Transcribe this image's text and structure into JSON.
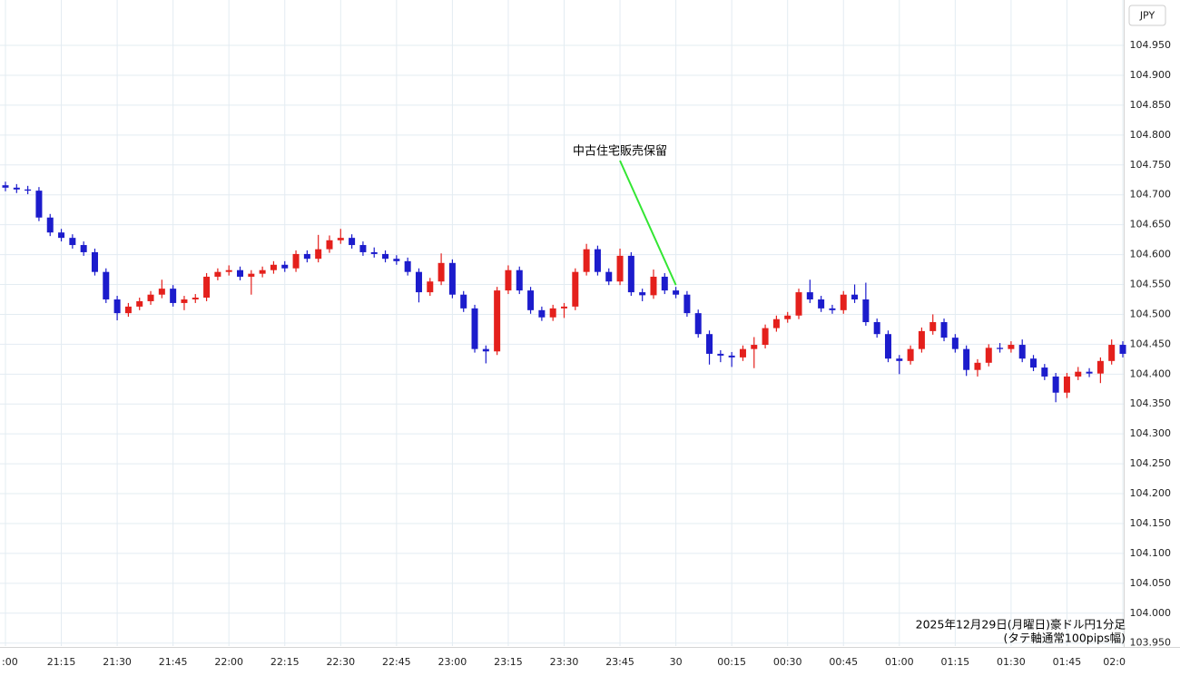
{
  "chart_data": {
    "type": "candlestick",
    "currency": "JPY",
    "caption": [
      "2025年12月29日(月曜日)豪ドル円1分足",
      "(タテ軸通常100pips幅)"
    ],
    "annotation": "中古住宅販売保留",
    "up_color": "#e4201c",
    "down_color": "#1c1ccc",
    "annotation_color": "#33e633",
    "grid": true,
    "ylim": [
      103.945,
      105.026
    ],
    "yticks": [
      {
        "value": 103.95,
        "label": "103.950"
      },
      {
        "value": 104.0,
        "label": "104.000"
      },
      {
        "value": 104.05,
        "label": "104.050"
      },
      {
        "value": 104.1,
        "label": "104.100"
      },
      {
        "value": 104.15,
        "label": "104.150"
      },
      {
        "value": 104.2,
        "label": "104.200"
      },
      {
        "value": 104.25,
        "label": "104.250"
      },
      {
        "value": 104.3,
        "label": "104.300"
      },
      {
        "value": 104.35,
        "label": "104.350"
      },
      {
        "value": 104.4,
        "label": "104.400"
      },
      {
        "value": 104.45,
        "label": "104.450"
      },
      {
        "value": 104.5,
        "label": "104.500"
      },
      {
        "value": 104.55,
        "label": "104.550"
      },
      {
        "value": 104.6,
        "label": "104.600"
      },
      {
        "value": 104.65,
        "label": "104.650"
      },
      {
        "value": 104.7,
        "label": "104.700"
      },
      {
        "value": 104.75,
        "label": "104.750"
      },
      {
        "value": 104.8,
        "label": "104.800"
      },
      {
        "value": 104.85,
        "label": "104.850"
      },
      {
        "value": 104.9,
        "label": "104.900"
      },
      {
        "value": 104.95,
        "label": "104.950"
      }
    ],
    "categories": [
      ":00",
      null,
      null,
      null,
      null,
      "21:15",
      null,
      null,
      null,
      null,
      "21:30",
      null,
      null,
      null,
      null,
      "21:45",
      null,
      null,
      null,
      null,
      "22:00",
      null,
      null,
      null,
      null,
      "22:15",
      null,
      null,
      null,
      null,
      "22:30",
      null,
      null,
      null,
      null,
      "22:45",
      null,
      null,
      null,
      null,
      "23:00",
      null,
      null,
      null,
      null,
      "23:15",
      null,
      null,
      null,
      null,
      "23:30",
      null,
      null,
      null,
      null,
      "23:45",
      null,
      null,
      null,
      null,
      "30",
      null,
      null,
      null,
      null,
      "00:15",
      null,
      null,
      null,
      null,
      "00:30",
      null,
      null,
      null,
      null,
      "00:45",
      null,
      null,
      null,
      null,
      "01:00",
      null,
      null,
      null,
      null,
      "01:15",
      null,
      null,
      null,
      null,
      "01:30",
      null,
      null,
      null,
      null,
      "01:45",
      null,
      null,
      null,
      null,
      "02:0"
    ],
    "open": [
      104.716,
      104.712,
      104.709,
      104.707,
      104.662,
      104.637,
      104.628,
      104.616,
      104.604,
      104.571,
      104.525,
      104.502,
      104.513,
      104.522,
      104.533,
      104.543,
      104.519,
      104.525,
      104.528,
      104.563,
      104.571,
      104.574,
      104.563,
      104.568,
      104.574,
      104.583,
      104.577,
      104.601,
      104.593,
      104.609,
      104.624,
      104.628,
      104.616,
      104.604,
      104.601,
      104.593,
      104.589,
      104.571,
      104.537,
      104.555,
      104.586,
      104.533,
      104.51,
      104.442,
      104.438,
      104.54,
      104.574,
      104.54,
      104.507,
      104.495,
      104.51,
      104.513,
      104.571,
      104.609,
      104.571,
      104.555,
      104.598,
      104.537,
      104.532,
      104.563,
      104.54,
      104.533,
      104.502,
      104.467,
      104.434,
      104.431,
      104.428,
      104.442,
      104.449,
      104.477,
      104.492,
      104.498,
      104.537,
      104.525,
      104.51,
      104.507,
      104.533,
      104.525,
      104.487,
      104.467,
      104.426,
      104.422,
      104.442,
      104.472,
      104.487,
      104.461,
      104.442,
      104.407,
      104.419,
      104.444,
      104.442,
      104.449,
      104.426,
      104.411,
      104.396,
      104.369,
      104.396,
      104.404,
      104.401,
      104.422,
      104.449
    ],
    "high": [
      104.722,
      104.718,
      104.715,
      104.713,
      104.668,
      104.643,
      104.634,
      104.622,
      104.61,
      104.577,
      104.531,
      104.519,
      104.528,
      104.539,
      104.558,
      104.549,
      104.531,
      104.534,
      104.569,
      104.577,
      104.582,
      104.58,
      104.574,
      104.58,
      104.589,
      104.589,
      104.607,
      104.607,
      104.633,
      104.632,
      104.643,
      104.634,
      104.622,
      104.612,
      104.607,
      104.599,
      104.595,
      104.577,
      104.561,
      104.602,
      104.592,
      104.539,
      104.516,
      104.448,
      104.546,
      104.582,
      104.58,
      104.546,
      104.513,
      104.516,
      104.519,
      104.577,
      104.618,
      104.615,
      104.577,
      104.61,
      104.604,
      104.543,
      104.575,
      104.569,
      104.546,
      104.539,
      104.508,
      104.473,
      104.44,
      104.437,
      104.448,
      104.462,
      104.483,
      104.498,
      104.504,
      104.543,
      104.558,
      104.531,
      104.516,
      104.539,
      104.55,
      104.553,
      104.493,
      104.473,
      104.432,
      104.448,
      104.478,
      104.5,
      104.493,
      104.467,
      104.448,
      104.425,
      104.45,
      104.452,
      104.455,
      104.458,
      104.432,
      104.417,
      104.402,
      104.402,
      104.412,
      104.41,
      104.428,
      104.458,
      104.455
    ],
    "low": [
      104.706,
      104.703,
      104.701,
      104.656,
      104.631,
      104.622,
      104.61,
      104.598,
      104.565,
      104.519,
      104.49,
      104.496,
      104.507,
      104.516,
      104.527,
      104.513,
      104.507,
      104.519,
      104.522,
      104.557,
      104.565,
      104.557,
      104.533,
      104.562,
      104.568,
      104.571,
      104.571,
      104.587,
      104.587,
      104.603,
      104.618,
      104.61,
      104.598,
      104.595,
      104.587,
      104.583,
      104.565,
      104.52,
      104.531,
      104.549,
      104.527,
      104.504,
      104.436,
      104.418,
      104.432,
      104.534,
      104.534,
      104.501,
      104.489,
      104.489,
      104.494,
      104.507,
      104.565,
      104.565,
      104.549,
      104.549,
      104.531,
      104.522,
      104.526,
      104.534,
      104.527,
      104.496,
      104.461,
      104.416,
      104.42,
      104.412,
      104.422,
      104.41,
      104.443,
      104.471,
      104.486,
      104.492,
      104.519,
      104.504,
      104.501,
      104.501,
      104.519,
      104.481,
      104.461,
      104.42,
      104.4,
      104.416,
      104.436,
      104.466,
      104.455,
      104.436,
      104.397,
      104.396,
      104.413,
      104.436,
      104.436,
      104.42,
      104.405,
      104.39,
      104.353,
      104.36,
      104.39,
      104.395,
      104.385,
      104.416,
      104.428
    ],
    "close": [
      104.712,
      104.709,
      104.707,
      104.662,
      104.637,
      104.628,
      104.616,
      104.604,
      104.571,
      104.525,
      104.502,
      104.513,
      104.522,
      104.533,
      104.543,
      104.519,
      104.525,
      104.528,
      104.563,
      104.571,
      104.574,
      104.563,
      104.568,
      104.574,
      104.583,
      104.577,
      104.601,
      104.593,
      104.609,
      104.624,
      104.628,
      104.616,
      104.604,
      104.601,
      104.593,
      104.589,
      104.571,
      104.537,
      104.555,
      104.586,
      104.533,
      104.51,
      104.442,
      104.438,
      104.54,
      104.574,
      104.54,
      104.507,
      104.495,
      104.51,
      104.513,
      104.571,
      104.609,
      104.571,
      104.555,
      104.598,
      104.537,
      104.532,
      104.563,
      104.54,
      104.533,
      104.502,
      104.467,
      104.434,
      104.431,
      104.428,
      104.442,
      104.449,
      104.477,
      104.492,
      104.498,
      104.537,
      104.525,
      104.51,
      104.507,
      104.533,
      104.525,
      104.487,
      104.467,
      104.426,
      104.422,
      104.442,
      104.472,
      104.487,
      104.461,
      104.442,
      104.407,
      104.419,
      104.444,
      104.442,
      104.449,
      104.426,
      104.411,
      104.396,
      104.369,
      104.396,
      104.404,
      104.401,
      104.422,
      104.449,
      104.434
    ]
  }
}
